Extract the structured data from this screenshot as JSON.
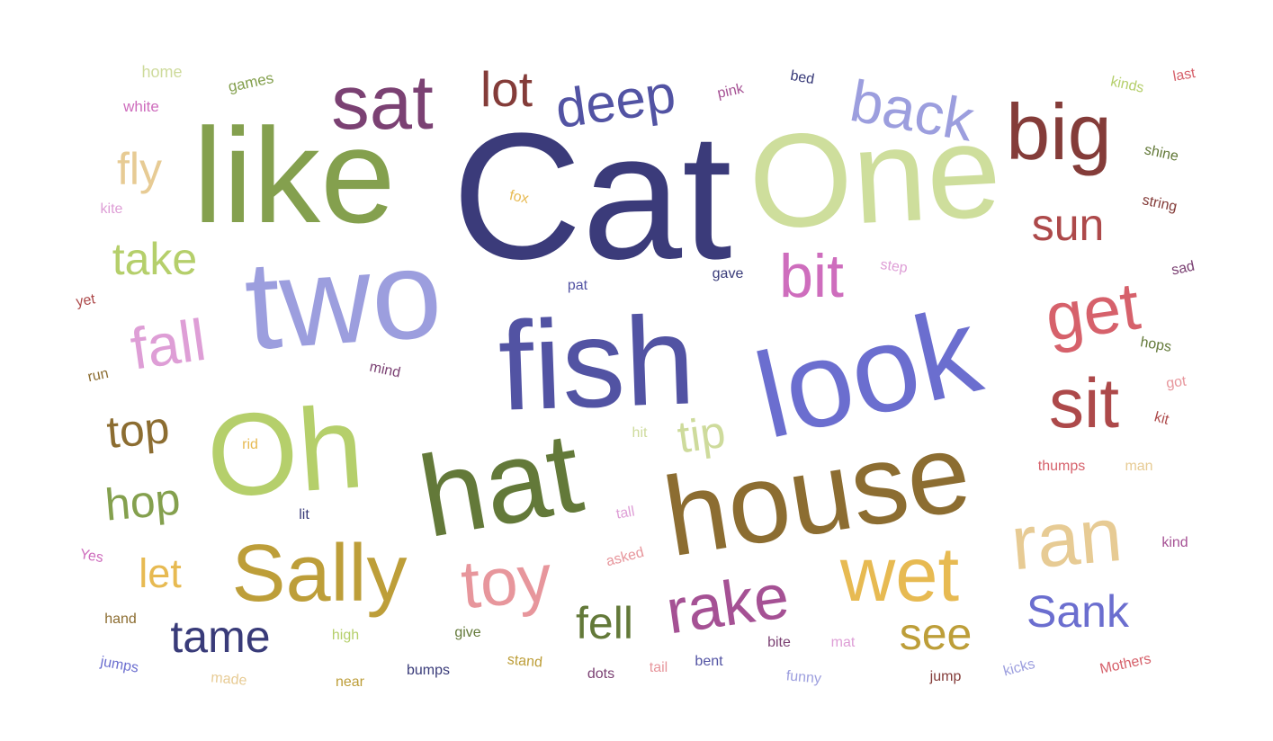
{
  "words": [
    {
      "text": "Cat",
      "color": "#3b3b7a"
    },
    {
      "text": "One",
      "color": "#cede9c"
    },
    {
      "text": "like",
      "color": "#84a04e"
    },
    {
      "text": "two",
      "color": "#9c9ede"
    },
    {
      "text": "fish",
      "color": "#5253a3"
    },
    {
      "text": "look",
      "color": "#6b6ecf"
    },
    {
      "text": "Oh",
      "color": "#b5cf6b"
    },
    {
      "text": "hat",
      "color": "#637939"
    },
    {
      "text": "house",
      "color": "#8c6d31"
    },
    {
      "text": "Sally",
      "color": "#bd9e39"
    },
    {
      "text": "big",
      "color": "#843c39"
    },
    {
      "text": "sat",
      "color": "#7b4173"
    },
    {
      "text": "wet",
      "color": "#e7ba52"
    },
    {
      "text": "ran",
      "color": "#e7cb94"
    },
    {
      "text": "sit",
      "color": "#ad494a"
    },
    {
      "text": "get",
      "color": "#d6616b"
    },
    {
      "text": "toy",
      "color": "#e7969c"
    },
    {
      "text": "rake",
      "color": "#a55194"
    },
    {
      "text": "back",
      "color": "#9c9ede"
    },
    {
      "text": "deep",
      "color": "#5253a3"
    },
    {
      "text": "lot",
      "color": "#843c39"
    },
    {
      "text": "bit",
      "color": "#ce6dbd"
    },
    {
      "text": "fall",
      "color": "#de9ed6"
    },
    {
      "text": "take",
      "color": "#b5cf6b"
    },
    {
      "text": "sun",
      "color": "#ad494a"
    },
    {
      "text": "fly",
      "color": "#e7cb94"
    },
    {
      "text": "top",
      "color": "#8c6d31"
    },
    {
      "text": "tip",
      "color": "#cedb9c"
    },
    {
      "text": "hop",
      "color": "#84a04e"
    },
    {
      "text": "let",
      "color": "#e7ba52"
    },
    {
      "text": "tame",
      "color": "#393b79"
    },
    {
      "text": "fell",
      "color": "#637939"
    },
    {
      "text": "see",
      "color": "#bd9e39"
    },
    {
      "text": "Sank",
      "color": "#6b6ecf"
    },
    {
      "text": "home",
      "color": "#cedb9c"
    },
    {
      "text": "games",
      "color": "#84a04e"
    },
    {
      "text": "white",
      "color": "#ce6dbd"
    },
    {
      "text": "pink",
      "color": "#a55194"
    },
    {
      "text": "bed",
      "color": "#393b79"
    },
    {
      "text": "kinds",
      "color": "#b5cf6b"
    },
    {
      "text": "last",
      "color": "#d6616b"
    },
    {
      "text": "shine",
      "color": "#637939"
    },
    {
      "text": "fox",
      "color": "#e7ba52"
    },
    {
      "text": "kite",
      "color": "#de9ed6"
    },
    {
      "text": "string",
      "color": "#843c39"
    },
    {
      "text": "gave",
      "color": "#393b79"
    },
    {
      "text": "step",
      "color": "#de9ed6"
    },
    {
      "text": "pat",
      "color": "#5253a3"
    },
    {
      "text": "sad",
      "color": "#7b4173"
    },
    {
      "text": "yet",
      "color": "#ad494a"
    },
    {
      "text": "hops",
      "color": "#637939"
    },
    {
      "text": "mind",
      "color": "#7b4173"
    },
    {
      "text": "run",
      "color": "#8c6d31"
    },
    {
      "text": "got",
      "color": "#e7969c"
    },
    {
      "text": "kit",
      "color": "#ad494a"
    },
    {
      "text": "hit",
      "color": "#cedb9c"
    },
    {
      "text": "rid",
      "color": "#e7ba52"
    },
    {
      "text": "thumps",
      "color": "#d6616b"
    },
    {
      "text": "man",
      "color": "#e7cb94"
    },
    {
      "text": "lit",
      "color": "#393b79"
    },
    {
      "text": "tall",
      "color": "#de9ed6"
    },
    {
      "text": "Yes",
      "color": "#ce6dbd"
    },
    {
      "text": "asked",
      "color": "#e7969c"
    },
    {
      "text": "kind",
      "color": "#a55194"
    },
    {
      "text": "hand",
      "color": "#8c6d31"
    },
    {
      "text": "high",
      "color": "#b5cf6b"
    },
    {
      "text": "give",
      "color": "#637939"
    },
    {
      "text": "bite",
      "color": "#7b4173"
    },
    {
      "text": "mat",
      "color": "#de9ed6"
    },
    {
      "text": "jumps",
      "color": "#6b6ecf"
    },
    {
      "text": "stand",
      "color": "#bd9e39"
    },
    {
      "text": "bent",
      "color": "#5253a3"
    },
    {
      "text": "tail",
      "color": "#e7969c"
    },
    {
      "text": "dots",
      "color": "#7b4173"
    },
    {
      "text": "bumps",
      "color": "#393b79"
    },
    {
      "text": "made",
      "color": "#e7cb94"
    },
    {
      "text": "near",
      "color": "#bd9e39"
    },
    {
      "text": "funny",
      "color": "#9c9ede"
    },
    {
      "text": "jump",
      "color": "#843c39"
    },
    {
      "text": "kicks",
      "color": "#9c9ede"
    },
    {
      "text": "Mothers",
      "color": "#d6616b"
    }
  ]
}
